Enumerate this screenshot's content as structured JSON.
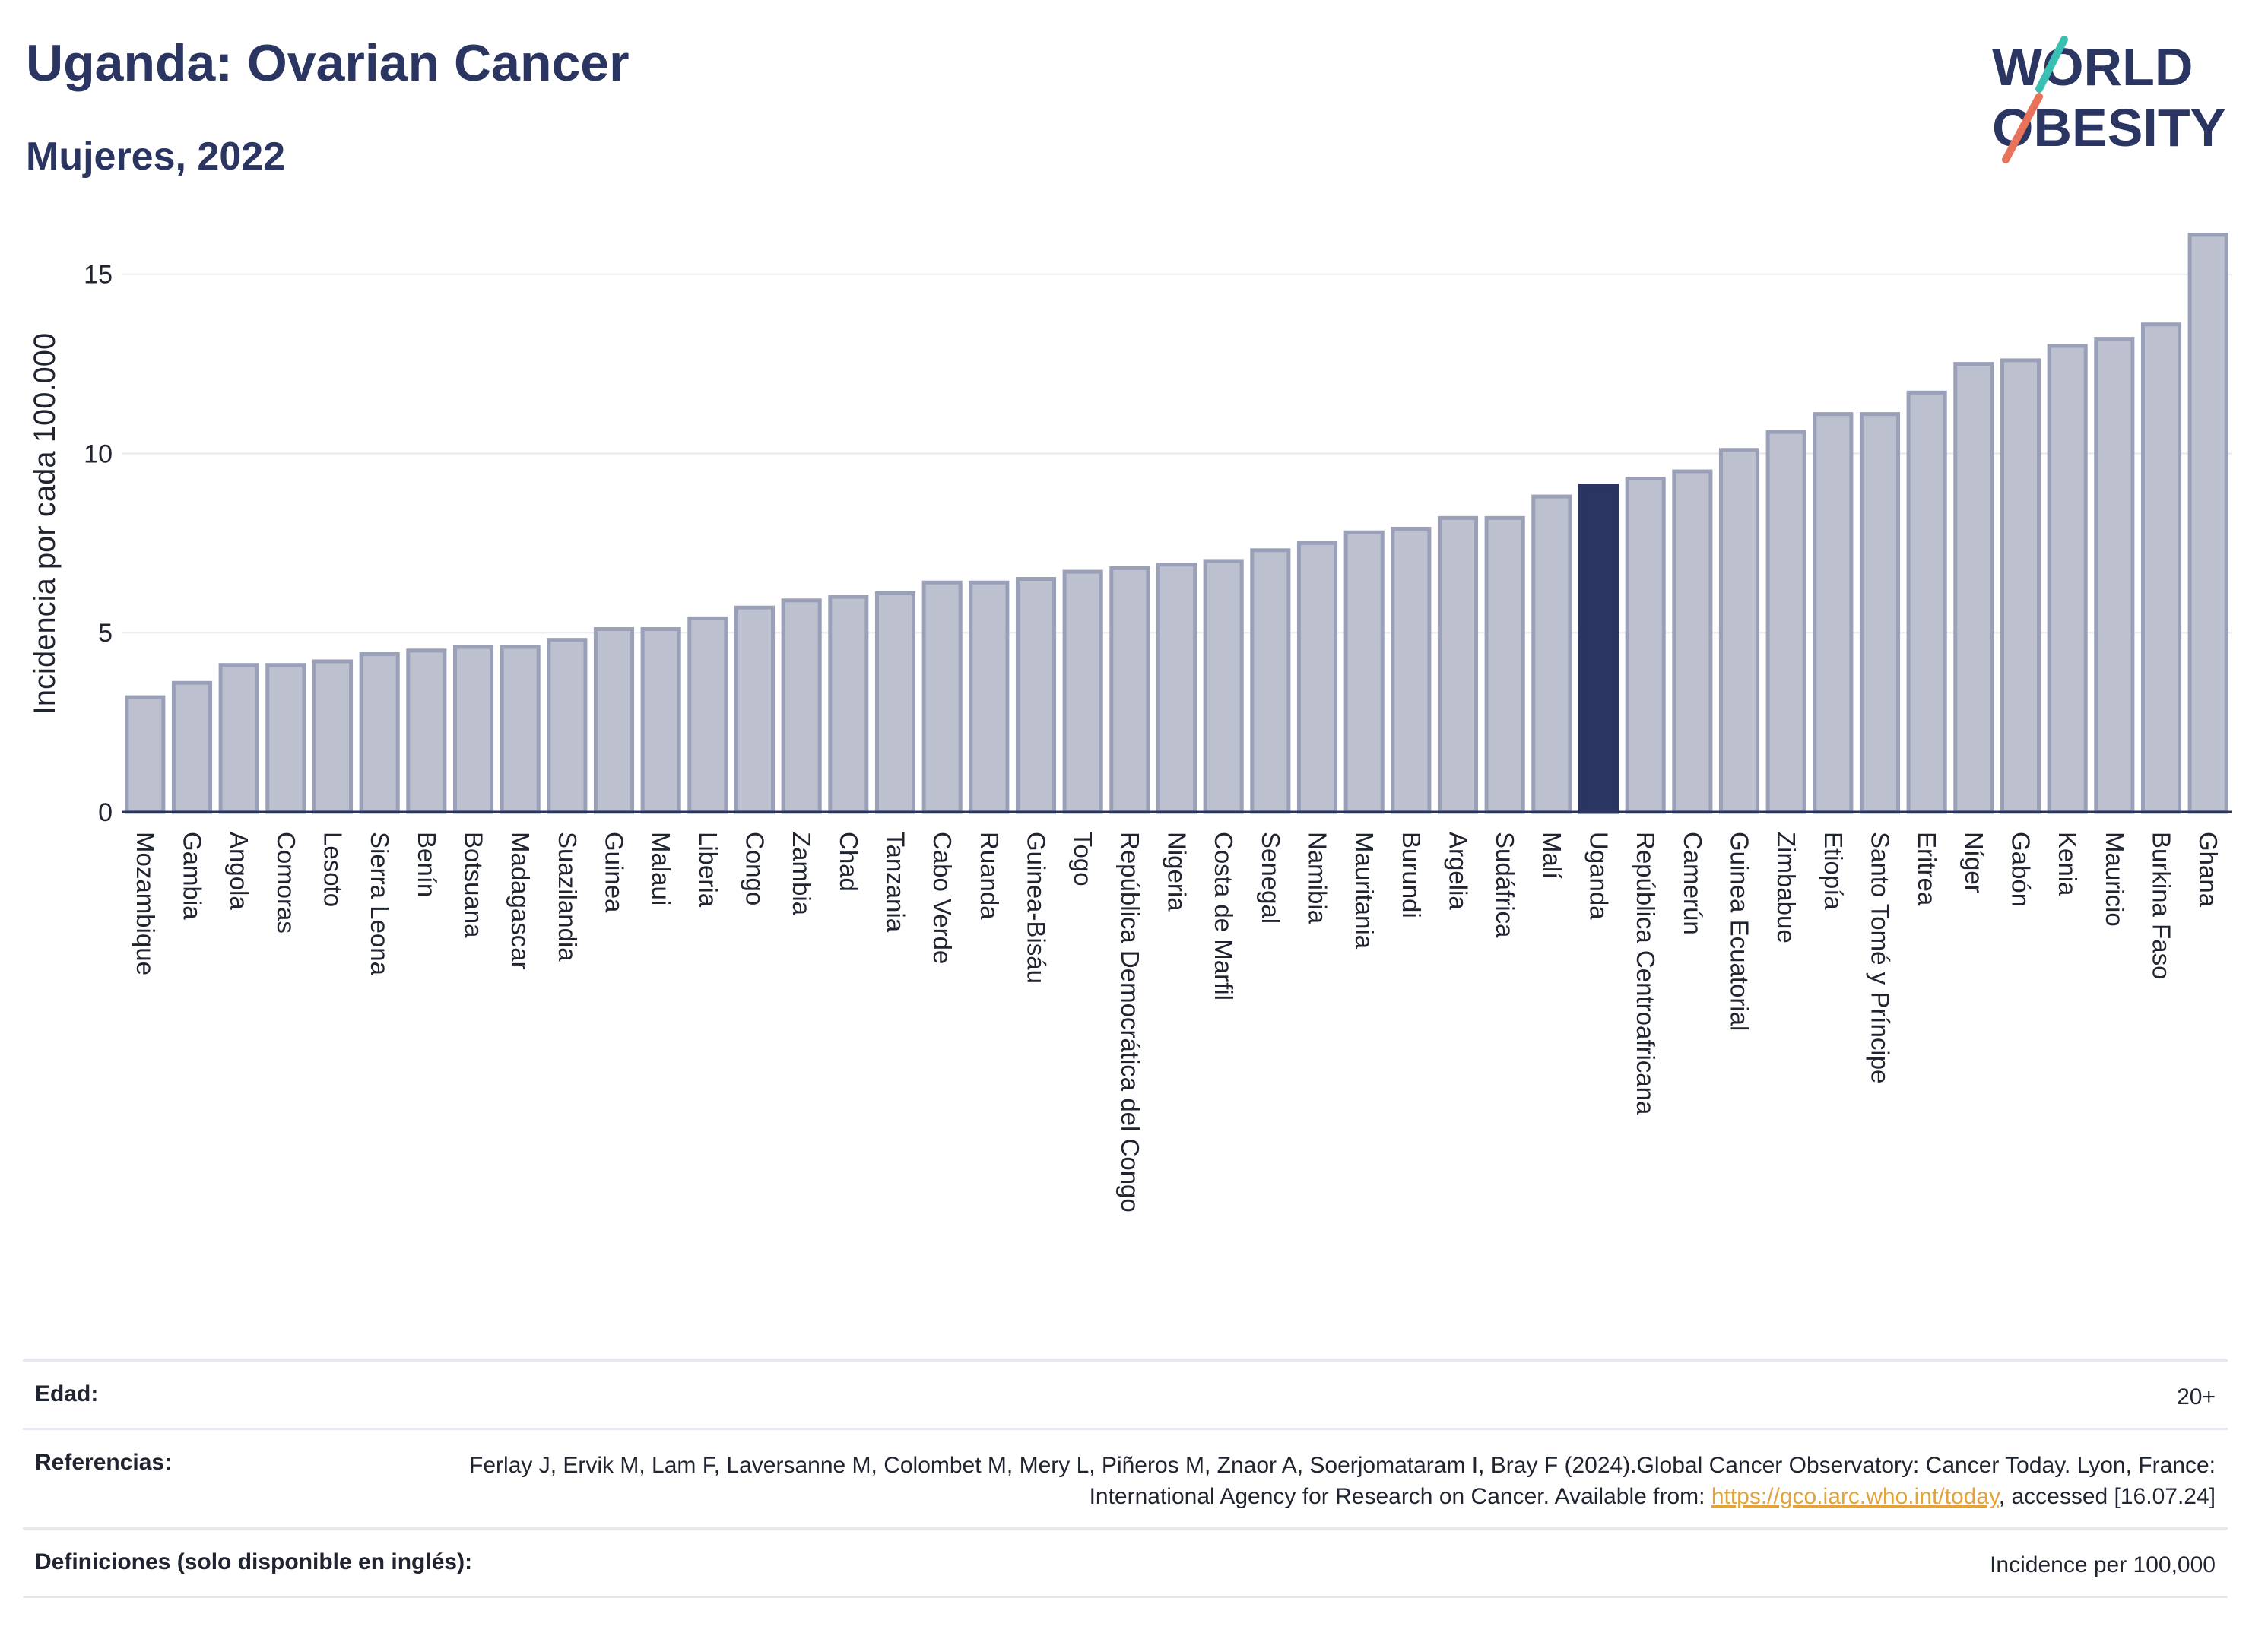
{
  "title": "Uganda: Ovarian Cancer",
  "subtitle": "Mujeres, 2022",
  "logo": {
    "line1": "WORLD",
    "line2": "OBESITY",
    "colors": [
      "#2b3561",
      "#3bbfb3",
      "#e8735a"
    ]
  },
  "colors": {
    "bar": "#bcc0cf",
    "bar_stroke": "#9aa0b8",
    "highlight": "#2b3561",
    "grid": "#e6e8ee",
    "axis": "#2b3561"
  },
  "chart_data": {
    "type": "bar",
    "ylabel": "Incidencia por cada 100.000",
    "xlabel": "",
    "ylim": [
      0,
      16.5
    ],
    "yticks": [
      0,
      5,
      10,
      15
    ],
    "grid": true,
    "highlight": "Uganda",
    "categories": [
      "Mozambique",
      "Gambia",
      "Angola",
      "Comoras",
      "Lesoto",
      "Sierra Leona",
      "Benín",
      "Botsuana",
      "Madagascar",
      "Suazilandia",
      "Guinea",
      "Malaui",
      "Liberia",
      "Congo",
      "Zambia",
      "Chad",
      "Tanzania",
      "Cabo Verde",
      "Ruanda",
      "Guinea-Bisáu",
      "Togo",
      "República Democrática del Congo",
      "Nigeria",
      "Costa de Marfil",
      "Senegal",
      "Namibia",
      "Mauritania",
      "Burundi",
      "Argelia",
      "Sudáfrica",
      "Malí",
      "Uganda",
      "República Centroafricana",
      "Camerún",
      "Guinea Ecuatorial",
      "Zimbabue",
      "Etiopía",
      "Santo Tomé y Príncipe",
      "Eritrea",
      "Níger",
      "Gabón",
      "Kenia",
      "Mauricio",
      "Burkina Faso",
      "Ghana"
    ],
    "values": [
      3.2,
      3.6,
      4.1,
      4.1,
      4.2,
      4.4,
      4.5,
      4.6,
      4.6,
      4.8,
      5.1,
      5.1,
      5.4,
      5.7,
      5.9,
      6.0,
      6.1,
      6.4,
      6.4,
      6.5,
      6.7,
      6.8,
      6.9,
      7.0,
      7.3,
      7.5,
      7.8,
      7.9,
      8.2,
      8.2,
      8.8,
      9.1,
      9.3,
      9.5,
      10.1,
      10.6,
      11.1,
      11.1,
      11.7,
      12.5,
      12.6,
      13.0,
      13.2,
      13.6,
      16.1
    ]
  },
  "footer": {
    "age_label": "Edad:",
    "age_value": "20+",
    "refs_label": "Referencias:",
    "refs_text_1": "Ferlay J, Ervik M, Lam F, Laversanne M, Colombet M, Mery L, Piñeros M, Znaor A, Soerjomataram I, Bray F (2024).Global Cancer Observatory: Cancer Today. Lyon, France: International Agency for Research on Cancer. Available from: ",
    "refs_link": "https://gco.iarc.who.int/today",
    "refs_text_2": ", accessed [16.07.24]",
    "defs_label": "Definiciones (solo disponible en inglés):",
    "defs_value": "Incidence per 100,000"
  }
}
